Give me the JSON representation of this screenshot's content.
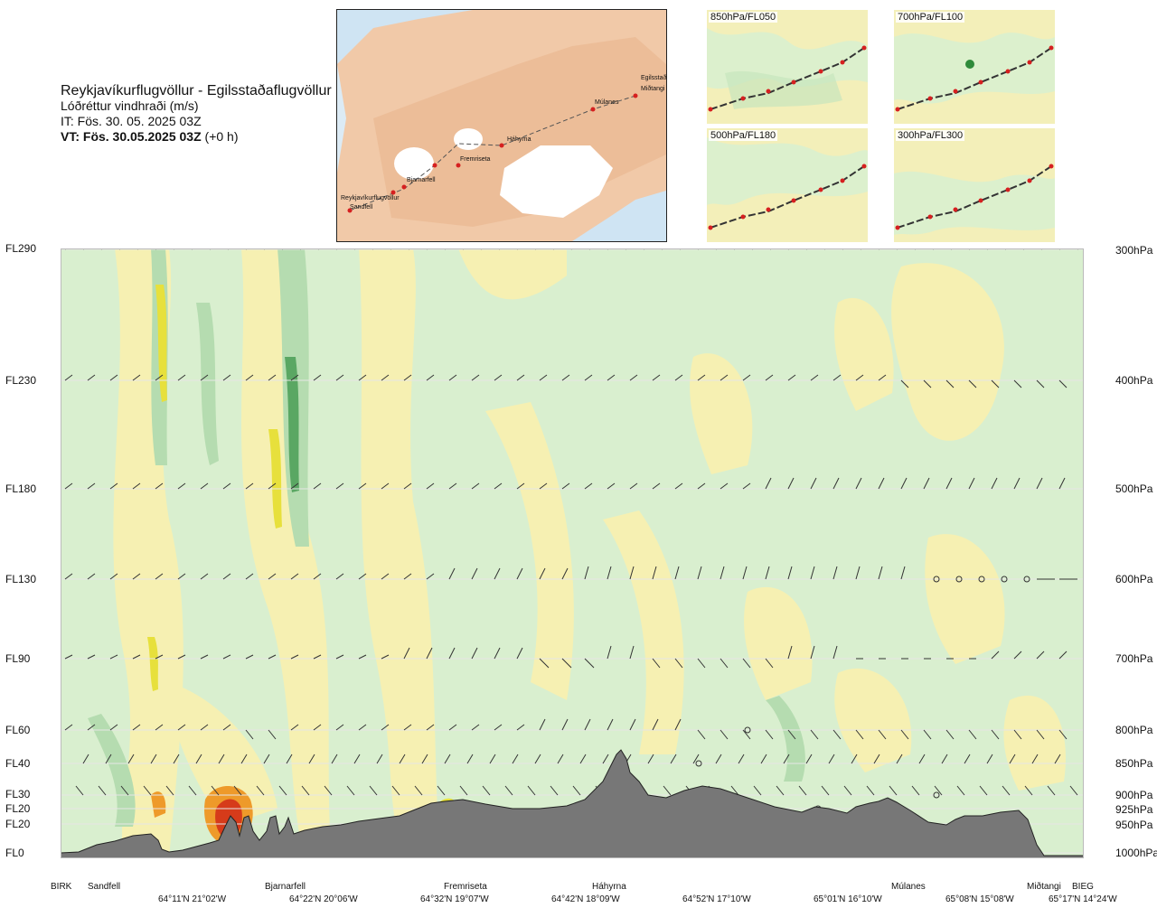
{
  "header": {
    "route": "Reykjavíkurflugvöllur - Egilsstaðaflugvöllur",
    "subtitle": "Lóðréttur vindhraði (m/s)",
    "it": "IT: Fös. 30. 05. 2025 03Z",
    "vt": "VT: Fös. 30.05.2025 03Z",
    "vt_suffix": "(+0 h)"
  },
  "overview_map": {
    "waypoints": [
      "Reykjavíkurflugvöllur",
      "Sandfell",
      "Bjarnarfell",
      "Fremriseta",
      "Háhyrna",
      "Múlanes",
      "Miðtangi",
      "Egilsstaðir"
    ]
  },
  "mini_maps": [
    {
      "label": "850hPa/FL050"
    },
    {
      "label": "700hPa/FL100"
    },
    {
      "label": "500hPa/FL180"
    },
    {
      "label": "300hPa/FL300"
    }
  ],
  "left_levels": [
    "FL290",
    "FL230",
    "FL180",
    "FL130",
    "FL90",
    "FL60",
    "FL40",
    "FL30",
    "FL20",
    "FL20",
    "FL0"
  ],
  "right_levels": [
    "300hPa",
    "400hPa",
    "500hPa",
    "600hPa",
    "700hPa",
    "800hPa",
    "850hPa",
    "900hPa",
    "925hPa",
    "950hPa",
    "1000hPa"
  ],
  "places": [
    "BIRK",
    "Sandfell",
    "Bjarnarfell",
    "Fremriseta",
    "Háhyrna",
    "Múlanes",
    "Miðtangi",
    "BIEG"
  ],
  "coords": [
    "64°11'N 21°02'W",
    "64°22'N 20°06'W",
    "64°32'N 19°07'W",
    "64°42'N 18°09'W",
    "64°52'N 17°10'W",
    "65°01'N 16°10'W",
    "65°08'N 15°08'W",
    "65°17'N 14°24'W"
  ],
  "colors": {
    "yellow_light": "#f6f0b2",
    "green_light": "#d9efcf",
    "green_mid": "#b5dcb0",
    "green_dark": "#5aa763",
    "yellow_strong": "#e7e03c",
    "orange": "#ee9a2a",
    "red": "#d63b1a",
    "terrain": "#777777"
  }
}
